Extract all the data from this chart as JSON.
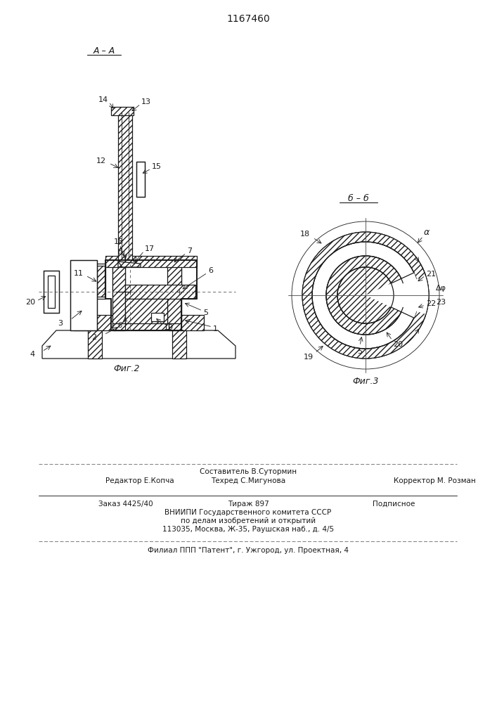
{
  "patent_number": "1167460",
  "title_aa": "A – A",
  "title_bb": "б – б",
  "fig2_label": "Фиг.2",
  "fig3_label": "Фиг.3",
  "footer_line1": "Составитель В.Сутормин",
  "footer_line2a": "Редактор Е.Копча",
  "footer_line2b": "Техред С.Мигунова",
  "footer_line2c": "Корректор М. Розман",
  "footer_line3a": "Заказ 4425/40",
  "footer_line3b": "Тираж 897",
  "footer_line3c": "Подписное",
  "footer_line4": "ВНИИПИ Государственного комитета СССР",
  "footer_line5": "по делам изобретений и открытий",
  "footer_line6": "113035, Москва, Ж-35, Раушская наб., д. 4/5",
  "footer_line7": "Филиал ППП \"Патент\", г. Ужгород, ул. Проектная, 4",
  "bg_color": "#ffffff",
  "line_color": "#1a1a1a"
}
